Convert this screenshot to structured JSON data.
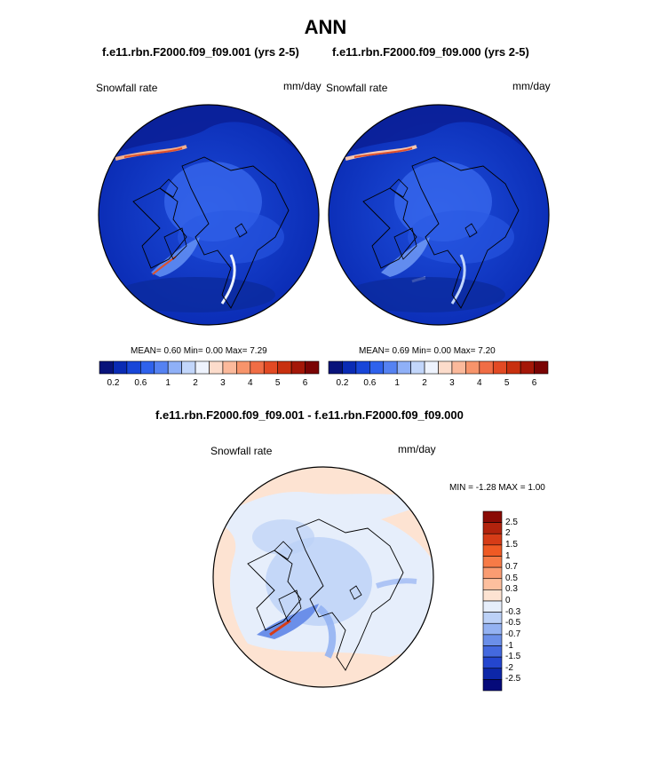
{
  "figure": {
    "title": "ANN",
    "subtitle_left": "f.e11.rbn.F2000.f09_f09.001 (yrs 2-5)",
    "subtitle_right": "f.e11.rbn.F2000.f09_f09.000 (yrs 2-5)",
    "diff_title": "f.e11.rbn.F2000.f09_f09.001 - f.e11.rbn.F2000.f09_f09.000"
  },
  "chart_data": [
    {
      "type": "heatmap",
      "projection": "north polar stereographic",
      "variable": "Snowfall rate",
      "units": "mm/day",
      "case": "f.e11.rbn.F2000.f09_f09.001 (yrs 2-5)",
      "stats_text": "MEAN=   0.60  Min=   0.00  Max=   7.29",
      "mean": 0.6,
      "min": 0.0,
      "max": 7.29,
      "colorbar": {
        "orientation": "horizontal",
        "levels": [
          "0.2",
          "0.6",
          "1",
          "2",
          "3",
          "4",
          "5",
          "6"
        ],
        "colors": [
          "#08137a",
          "#0a2bb4",
          "#1846d8",
          "#2f62ec",
          "#5582f2",
          "#8fb0f7",
          "#c2d6fb",
          "#eef3fd",
          "#fcdccb",
          "#fbb99b",
          "#f7946b",
          "#f06d45",
          "#e24a24",
          "#c8300f",
          "#a41708",
          "#7a0404"
        ]
      }
    },
    {
      "type": "heatmap",
      "projection": "north polar stereographic",
      "variable": "Snowfall rate",
      "units": "mm/day",
      "case": "f.e11.rbn.F2000.f09_f09.000 (yrs 2-5)",
      "stats_text": "MEAN=   0.69  Min=   0.00  Max=   7.20",
      "mean": 0.69,
      "min": 0.0,
      "max": 7.2,
      "colorbar": {
        "orientation": "horizontal",
        "levels": [
          "0.2",
          "0.6",
          "1",
          "2",
          "3",
          "4",
          "5",
          "6"
        ],
        "colors": [
          "#08137a",
          "#0a2bb4",
          "#1846d8",
          "#2f62ec",
          "#5582f2",
          "#8fb0f7",
          "#c2d6fb",
          "#eef3fd",
          "#fcdccb",
          "#fbb99b",
          "#f7946b",
          "#f06d45",
          "#e24a24",
          "#c8300f",
          "#a41708",
          "#7a0404"
        ]
      }
    },
    {
      "type": "heatmap",
      "projection": "north polar stereographic",
      "variable": "Snowfall rate",
      "units": "mm/day",
      "case": "f.e11.rbn.F2000.f09_f09.001 - f.e11.rbn.F2000.f09_f09.000",
      "stats_text": "MIN =  -1.28 MAX =   1.00",
      "min": -1.28,
      "max": 1.0,
      "colorbar": {
        "orientation": "vertical",
        "levels": [
          "2.5",
          "2",
          "1.5",
          "1",
          "0.7",
          "0.5",
          "0.3",
          "0",
          "-0.3",
          "-0.5",
          "-0.7",
          "-1",
          "-1.5",
          "-2",
          "-2.5"
        ],
        "colors": [
          "#8a0b05",
          "#b2230d",
          "#d63c17",
          "#ef5a24",
          "#f77b47",
          "#fa9c72",
          "#fdbf9e",
          "#fde3d2",
          "#e6eefb",
          "#bcd1f7",
          "#94b2f2",
          "#6b8fe9",
          "#4469df",
          "#2446cf",
          "#0d27a8",
          "#050a7a"
        ]
      }
    }
  ]
}
